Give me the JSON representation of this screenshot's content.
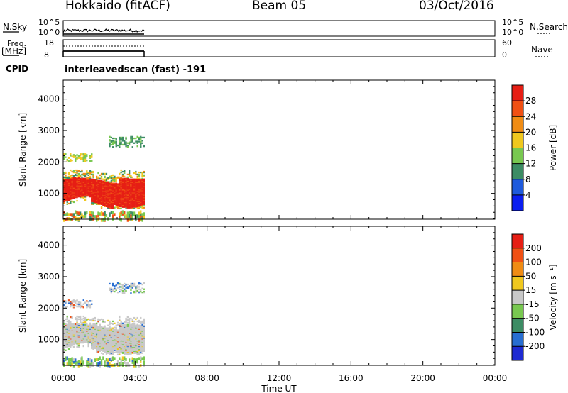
{
  "header": {
    "site": "Hokkaido (fitACF)",
    "beam": "Beam 05",
    "date": "03/Oct/2016"
  },
  "panels": {
    "nsky_label": "N.Sky",
    "nsky_ticks": [
      "10^5",
      "10^0"
    ],
    "nsearch_label": "N.Search",
    "freq_label_1": "Freq.",
    "freq_label_2": "[MHz]",
    "freq_ticks": [
      "18",
      "8"
    ],
    "nave_label": "Nave",
    "nave_ticks": [
      "60",
      "0"
    ],
    "cpid_label": "CPID",
    "cpid_text": "interleavedscan (fast) -191"
  },
  "chart_data": [
    {
      "type": "heatmap",
      "ylabel": "Slant Range [km]",
      "xlabel": "Time UT",
      "x_ticks": [
        "00:00",
        "04:00",
        "08:00",
        "12:00",
        "16:00",
        "20:00",
        "00:00"
      ],
      "y_ticks": [
        1000,
        2000,
        3000,
        4000
      ],
      "ylim": [
        180,
        4600
      ],
      "xlim_hours": [
        0,
        24
      ],
      "data_extent_hours": [
        0,
        4.5
      ],
      "colorbar": {
        "label": "Power [dB]",
        "ticks": [
          "4",
          "8",
          "12",
          "16",
          "20",
          "24",
          "28"
        ],
        "colors": [
          "#0a1ef0",
          "#1e5adc",
          "#3c8c64",
          "#78c850",
          "#f0c81e",
          "#f08c14",
          "#f05014",
          "#e61e14"
        ]
      },
      "bands": [
        {
          "name": "main",
          "range_km": [
            650,
            1750
          ],
          "core_level": 7
        },
        {
          "name": "upper",
          "range_km": [
            2000,
            2250
          ],
          "core_level": 3
        },
        {
          "name": "top",
          "range_km": [
            2550,
            2850
          ],
          "core_level": 2
        },
        {
          "name": "near",
          "range_km": [
            200,
            450
          ],
          "core_level": 3
        }
      ]
    },
    {
      "type": "heatmap",
      "ylabel": "Slant Range [km]",
      "xlabel": "Time UT",
      "x_ticks": [
        "00:00",
        "04:00",
        "08:00",
        "12:00",
        "16:00",
        "20:00",
        "00:00"
      ],
      "y_ticks": [
        1000,
        2000,
        3000,
        4000
      ],
      "ylim": [
        180,
        4600
      ],
      "xlim_hours": [
        0,
        24
      ],
      "data_extent_hours": [
        0,
        4.5
      ],
      "colorbar": {
        "label": "Velocity [m s⁻¹]",
        "ticks": [
          "200",
          "100",
          "50",
          "15",
          "-15",
          "-50",
          "-100",
          "-200"
        ],
        "colors": [
          "#1e2ad2",
          "#286ed2",
          "#3c8c64",
          "#78c850",
          "#c8c8c8",
          "#f0c81e",
          "#f08c14",
          "#f05014",
          "#e61e14"
        ]
      },
      "dominant_value": "grey (−15 to 15)"
    }
  ]
}
